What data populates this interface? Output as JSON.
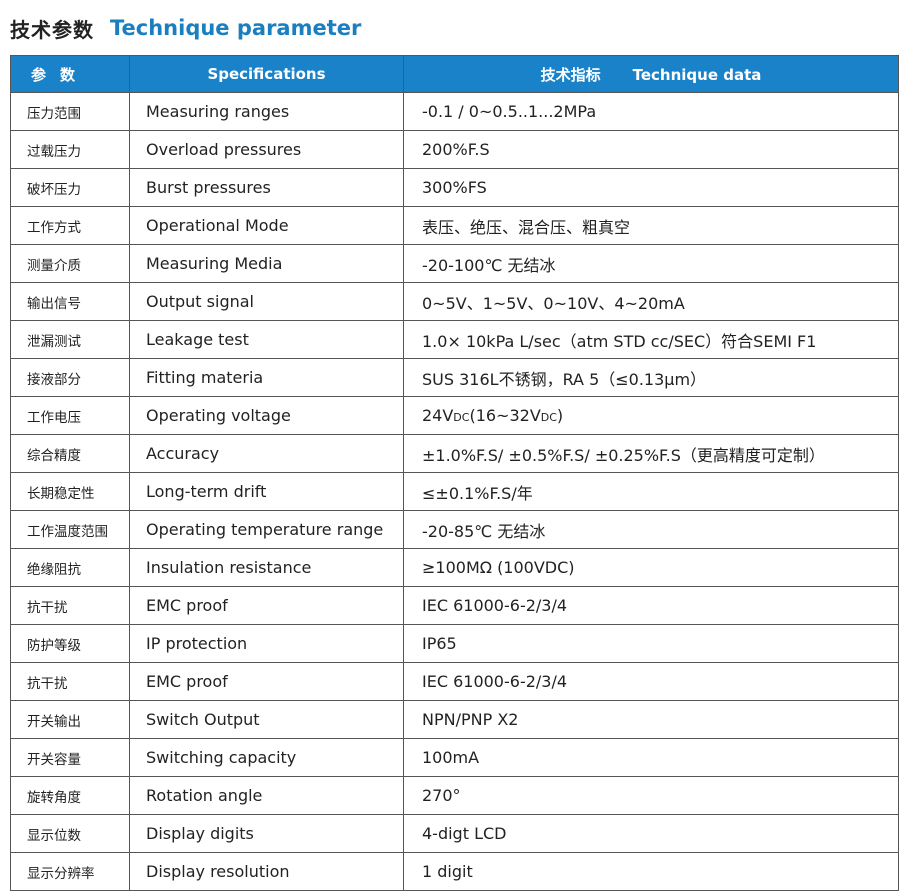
{
  "title": {
    "cn": "技术参数",
    "en": "Technique parameter"
  },
  "header": {
    "col1": "参数",
    "col2": "Specifications",
    "col3_cn": "技术指标",
    "col3_en": "Technique data"
  },
  "rows": [
    {
      "cn": "压力范围",
      "en": "Measuring ranges",
      "value": "-0.1 / 0~0.5..1...2MPa"
    },
    {
      "cn": "过载压力",
      "en": "Overload pressures",
      "value": "200%F.S"
    },
    {
      "cn": "破坏压力",
      "en": "Burst pressures",
      "value": "300%FS"
    },
    {
      "cn": "工作方式",
      "en": "Operational Mode",
      "value": "表压、绝压、混合压、粗真空"
    },
    {
      "cn": "测量介质",
      "en": "Measuring Media",
      "value": "-20-100℃  无结冰"
    },
    {
      "cn": "输出信号",
      "en": "Output signal",
      "value": "0~5V、1~5V、0~10V、4~20mA"
    },
    {
      "cn": "泄漏测试",
      "en": "Leakage test",
      "value": "1.0× 10kPa L/sec（atm STD cc/SEC）符合SEMI F1"
    },
    {
      "cn": "接液部分",
      "en": "Fitting materia",
      "value": "SUS 316L不锈钢，RA 5（≤0.13μm）"
    },
    {
      "cn": "工作电压",
      "en": "Operating voltage",
      "value": "24Vdc(16~32Vdc)"
    },
    {
      "cn": "综合精度",
      "en": "Accuracy",
      "value": "±1.0%F.S/ ±0.5%F.S/ ±0.25%F.S（更高精度可定制）"
    },
    {
      "cn": "长期稳定性",
      "en": "Long-term drift",
      "value": "≤±0.1%F.S/年"
    },
    {
      "cn": "工作温度范围",
      "en": "Operating temperature range",
      "value": "-20-85℃ 无结冰"
    },
    {
      "cn": "绝缘阻抗",
      "en": "Insulation resistance",
      "value": "≥100MΩ (100VDC)"
    },
    {
      "cn": "抗干扰",
      "en": "EMC proof",
      "value": "IEC 61000-6-2/3/4"
    },
    {
      "cn": "防护等级",
      "en": "IP protection",
      "value": "IP65"
    },
    {
      "cn": "抗干扰",
      "en": "EMC proof",
      "value": "IEC 61000-6-2/3/4"
    },
    {
      "cn": "开关输出",
      "en": "Switch Output",
      "value": "NPN/PNP X2"
    },
    {
      "cn": "开关容量",
      "en": "Switching capacity",
      "value": "100mA"
    },
    {
      "cn": "旋转角度",
      "en": "Rotation angle",
      "value": "270°"
    },
    {
      "cn": "显示位数",
      "en": "Display digits",
      "value": "4-digt LCD"
    },
    {
      "cn": "显示分辨率",
      "en": "Display resolution",
      "value": "1 digit"
    }
  ]
}
